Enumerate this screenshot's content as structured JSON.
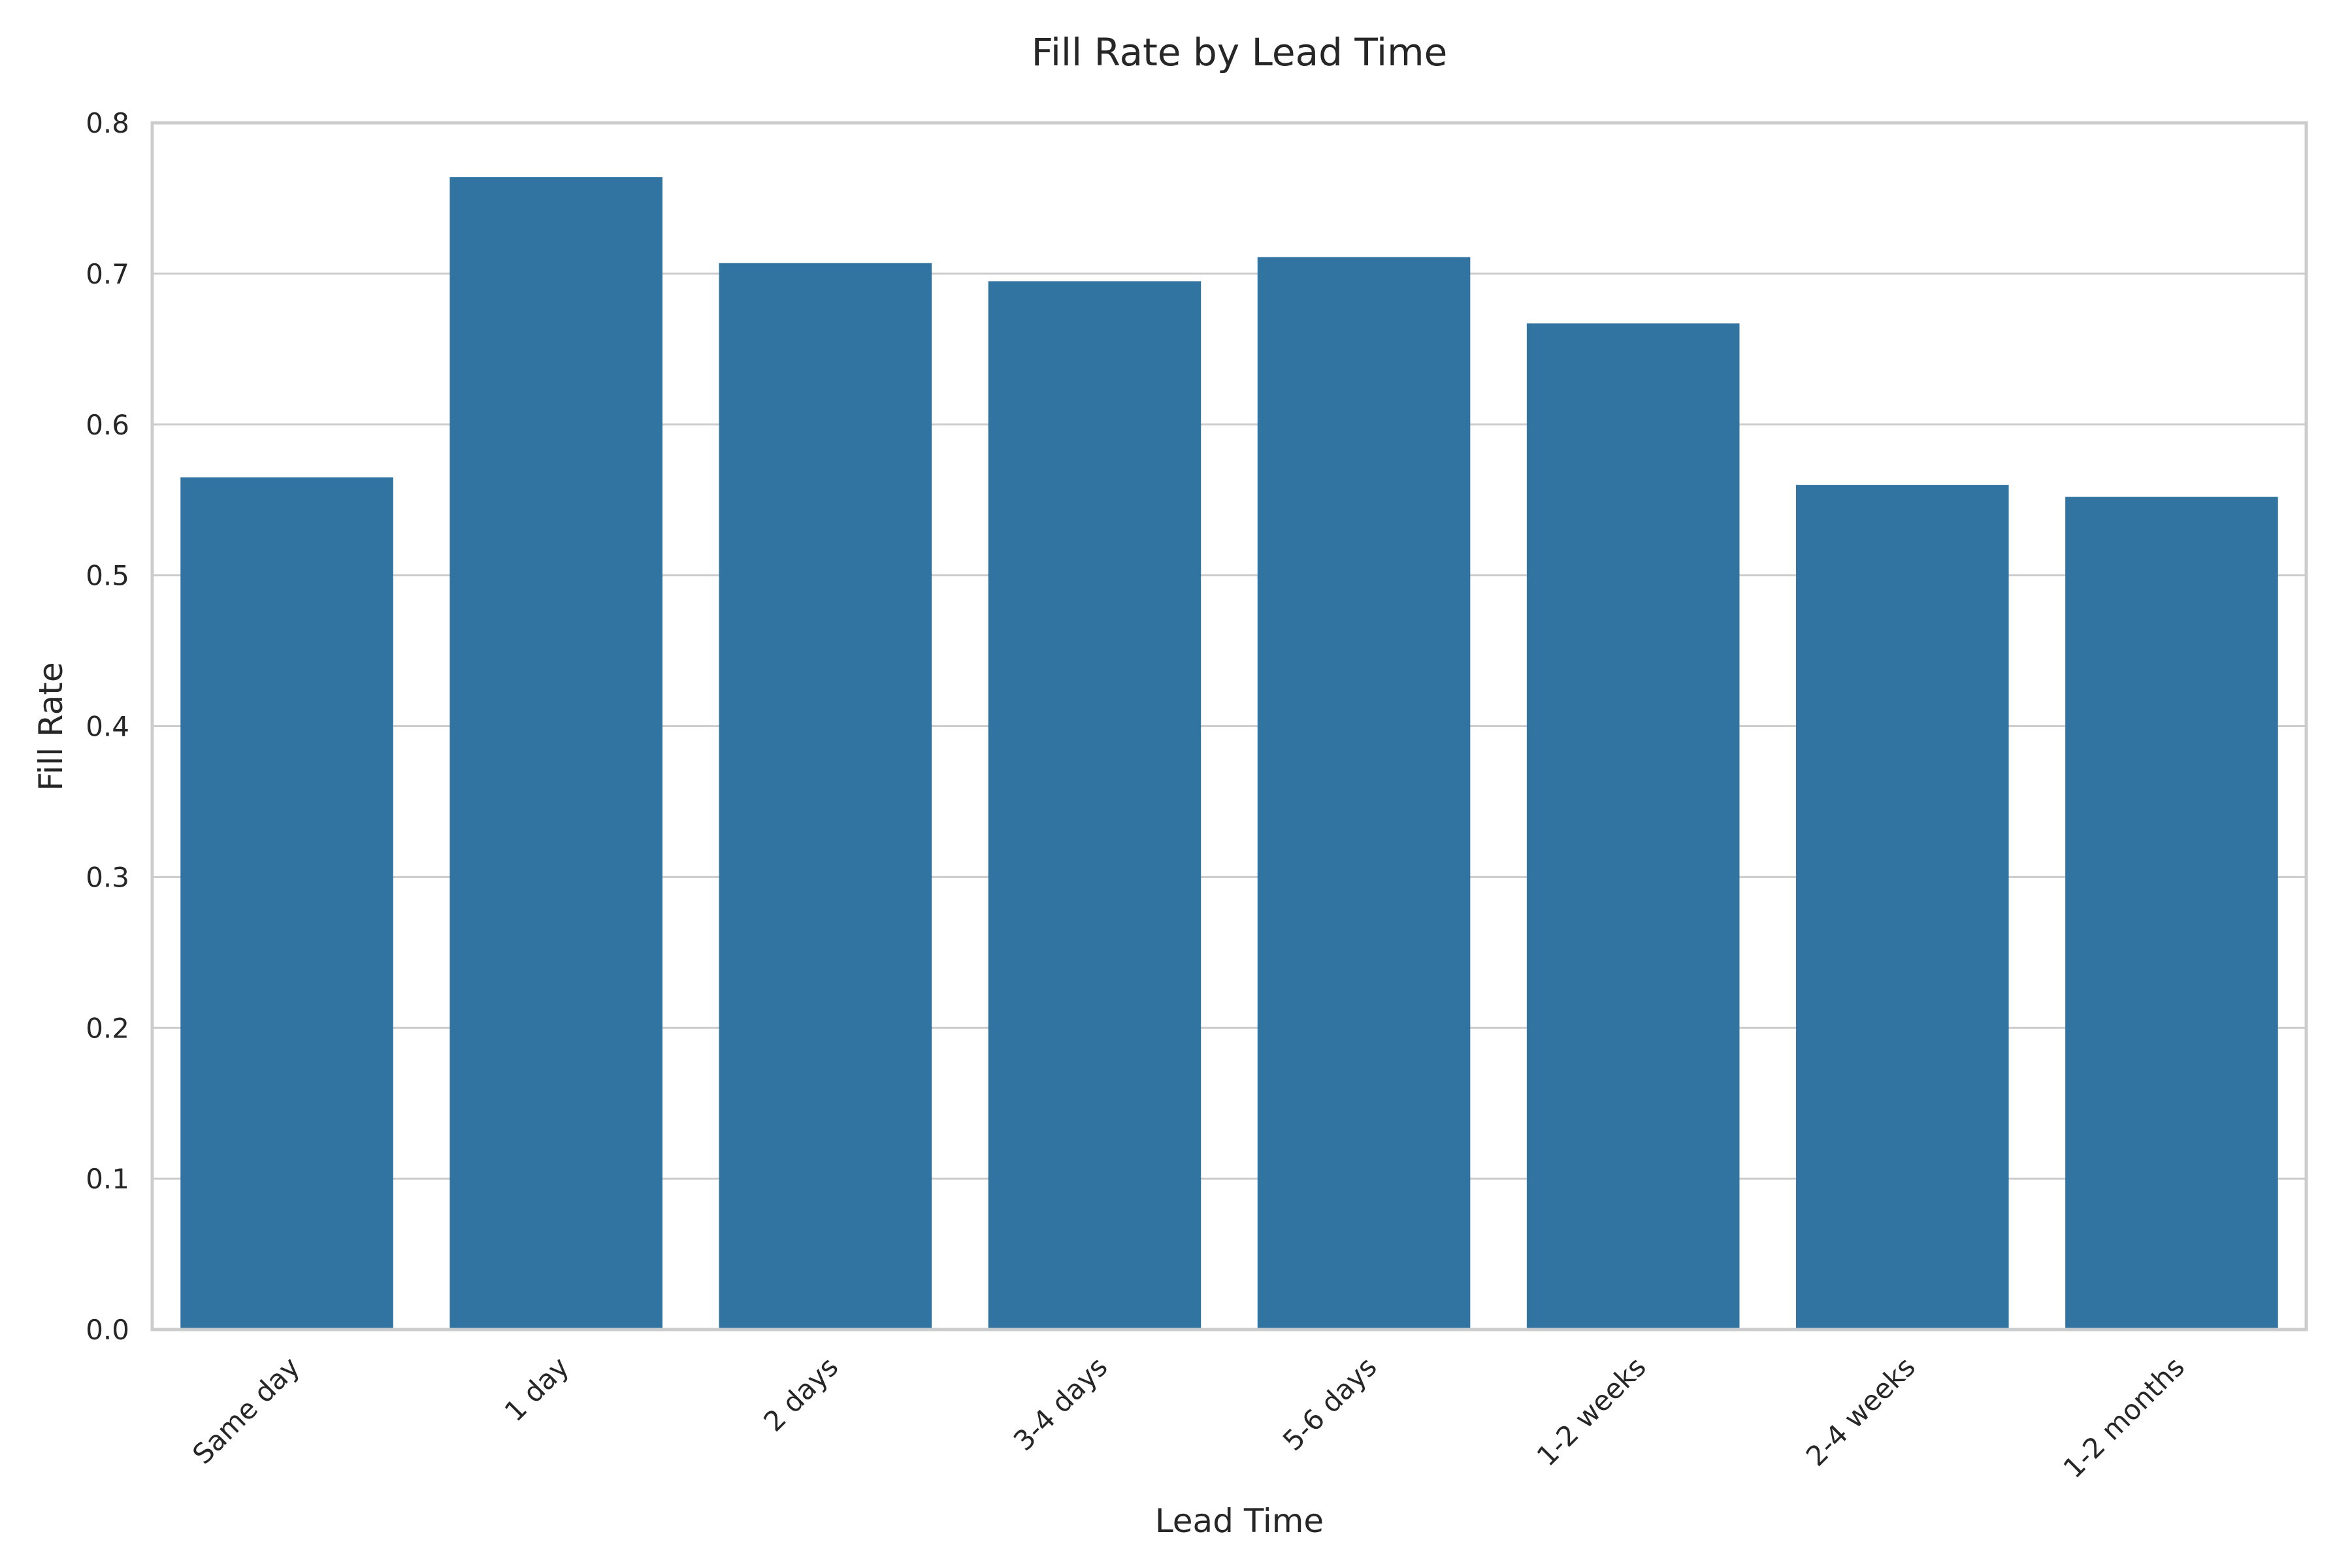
{
  "chart_data": {
    "type": "bar",
    "title": "Fill Rate by Lead Time",
    "xlabel": "Lead Time",
    "ylabel": "Fill Rate",
    "categories": [
      "Same day",
      "1 day",
      "2 days",
      "3-4 days",
      "5-6 days",
      "1-2 weeks",
      "2-4 weeks",
      "1-2 months"
    ],
    "values": [
      0.565,
      0.764,
      0.707,
      0.695,
      0.711,
      0.667,
      0.56,
      0.552
    ],
    "ylim": [
      0,
      0.8
    ],
    "yticks": [
      0.0,
      0.1,
      0.2,
      0.3,
      0.4,
      0.5,
      0.6,
      0.7,
      0.8
    ],
    "ytick_labels": [
      "0.0",
      "0.1",
      "0.2",
      "0.3",
      "0.4",
      "0.5",
      "0.6",
      "0.7",
      "0.8"
    ],
    "bar_color": "#3274a1",
    "grid": true,
    "legend": "none"
  }
}
